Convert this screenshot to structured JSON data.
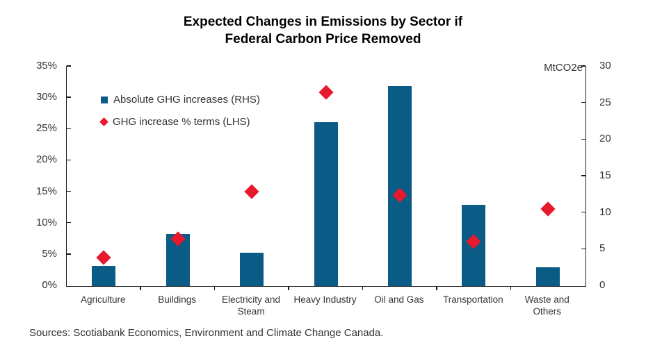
{
  "title": {
    "line1": "Expected Changes in Emissions by Sector if",
    "line2": "Federal Carbon Price Removed"
  },
  "legend": {
    "items": [
      {
        "label": "Absolute GHG increases (RHS)",
        "marker": "square",
        "color": "#0A5C87"
      },
      {
        "label": "GHG increase % terms (LHS)",
        "marker": "diamond",
        "color": "#E8182D"
      }
    ]
  },
  "source": "Sources: Scotiabank Economics, Environment and Climate Change Canada.",
  "colors": {
    "bar_blue": "#0A5C87",
    "diamond_red": "#E8182D",
    "axis_line": "#1a1a1a",
    "text": "#333333"
  },
  "chart_data": {
    "type": "bar",
    "subtype": "combo-bar-and-diamond-scatter",
    "title": "Expected Changes in Emissions by Sector if Federal Carbon Price Removed",
    "categories": [
      "Agriculture",
      "Buildings",
      "Electricity and Steam",
      "Heavy Industry",
      "Oil and Gas",
      "Transportation",
      "Waste and Others"
    ],
    "series": [
      {
        "name": "Absolute GHG increases (RHS)",
        "type": "bar",
        "axis": "right",
        "unit": "MtCO2e",
        "color": "#0A5C87",
        "values": [
          2.8,
          7.1,
          4.6,
          22.4,
          27.3,
          11.1,
          2.6
        ]
      },
      {
        "name": "GHG increase % terms (LHS)",
        "type": "scatter",
        "marker": "diamond",
        "axis": "left",
        "unit": "%",
        "color": "#E8182D",
        "values": [
          4.4,
          7.4,
          14.9,
          30.8,
          14.4,
          7.0,
          12.2
        ]
      }
    ],
    "left_axis": {
      "min": 0,
      "max": 35,
      "step": 5,
      "tick_labels": [
        "0%",
        "5%",
        "10%",
        "15%",
        "20%",
        "25%",
        "30%",
        "35%"
      ]
    },
    "right_axis": {
      "min": 0,
      "max": 30,
      "step": 5,
      "label": "MtCO2e",
      "tick_labels": [
        "0",
        "5",
        "10",
        "15",
        "20",
        "25",
        "30"
      ]
    },
    "grid": false,
    "legend_position": "upper-left-inside"
  }
}
